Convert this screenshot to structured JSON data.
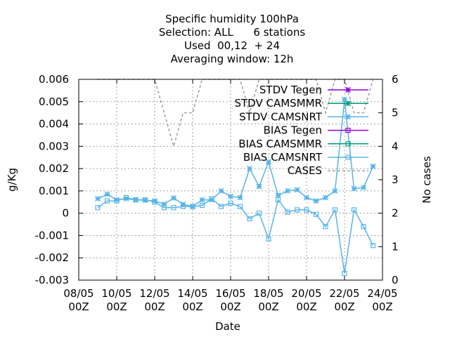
{
  "chart_data": {
    "type": "line",
    "title_lines": [
      "Specific humidity 100hPa",
      "Selection: ALL      6 stations",
      "Used  00,12  + 24",
      "Averaging window: 12h"
    ],
    "xlabel": "Date",
    "ylabel": "g/Kg",
    "y2label": "No cases",
    "xlim": [
      0,
      16
    ],
    "ylim": [
      -0.003,
      0.006
    ],
    "y2lim": [
      0,
      6
    ],
    "x_ticks": [
      {
        "x": 0,
        "line1": "08/05",
        "line2": "00Z"
      },
      {
        "x": 2,
        "line1": "10/05",
        "line2": "00Z"
      },
      {
        "x": 4,
        "line1": "12/05",
        "line2": "00Z"
      },
      {
        "x": 6,
        "line1": "14/05",
        "line2": "00Z"
      },
      {
        "x": 8,
        "line1": "16/05",
        "line2": "00Z"
      },
      {
        "x": 10,
        "line1": "18/05",
        "line2": "00Z"
      },
      {
        "x": 12,
        "line1": "20/05",
        "line2": "00Z"
      },
      {
        "x": 14,
        "line1": "22/05",
        "line2": "00Z"
      },
      {
        "x": 16,
        "line1": "24/05",
        "line2": "00Z"
      }
    ],
    "y_ticks": [
      {
        "v": 0.006,
        "label": "0.006"
      },
      {
        "v": 0.005,
        "label": "0.005"
      },
      {
        "v": 0.004,
        "label": "0.004"
      },
      {
        "v": 0.003,
        "label": "0.003"
      },
      {
        "v": 0.002,
        "label": "0.002"
      },
      {
        "v": 0.001,
        "label": "0.001"
      },
      {
        "v": 0,
        "label": "0"
      },
      {
        "v": -0.001,
        "label": "-0.001"
      },
      {
        "v": -0.002,
        "label": "-0.002"
      },
      {
        "v": -0.003,
        "label": "-0.003"
      }
    ],
    "y2_ticks": [
      {
        "v": 6,
        "label": "6"
      },
      {
        "v": 5,
        "label": "5"
      },
      {
        "v": 4,
        "label": "4"
      },
      {
        "v": 3,
        "label": "3"
      },
      {
        "v": 2,
        "label": "2"
      },
      {
        "v": 1,
        "label": "1"
      },
      {
        "v": 0,
        "label": "0"
      }
    ],
    "grid": true,
    "legend_position": "top-right",
    "series": [
      {
        "name": "STDV Tegen",
        "color": "#9400d3",
        "marker": "star",
        "axis": "y1",
        "x": [],
        "y": []
      },
      {
        "name": "STDV CAMSMMR",
        "color": "#009e73",
        "marker": "star",
        "axis": "y1",
        "x": [],
        "y": []
      },
      {
        "name": "STDV CAMSNRT",
        "color": "#56b4e9",
        "marker": "star",
        "axis": "y1",
        "x": [
          1,
          1.5,
          2,
          2.5,
          3,
          3.5,
          4,
          4.5,
          5,
          5.5,
          6,
          6.5,
          7,
          7.5,
          8,
          8.5,
          9,
          9.5,
          10,
          10.5,
          11,
          11.5,
          12,
          12.5,
          13,
          13.5,
          14,
          14.5,
          15,
          15.5
        ],
        "y": [
          0.00065,
          0.00085,
          0.0006,
          0.00065,
          0.0006,
          0.00058,
          0.00055,
          0.0004,
          0.00068,
          0.0004,
          0.0003,
          0.0006,
          0.0006,
          0.001,
          0.00075,
          0.0007,
          0.002,
          0.0012,
          0.0023,
          0.0008,
          0.001,
          0.00105,
          0.0007,
          0.00055,
          0.0007,
          0.001,
          0.0051,
          0.0011,
          0.00115,
          0.0021
        ]
      },
      {
        "name": "BIAS Tegen",
        "color": "#9400d3",
        "marker": "square",
        "axis": "y1",
        "x": [],
        "y": []
      },
      {
        "name": "BIAS CAMSMMR",
        "color": "#009e73",
        "marker": "square",
        "axis": "y1",
        "x": [],
        "y": []
      },
      {
        "name": "BIAS CAMSNRT",
        "color": "#56b4e9",
        "marker": "square",
        "axis": "y1",
        "x": [
          1,
          1.5,
          2,
          2.5,
          3,
          3.5,
          4,
          4.5,
          5,
          5.5,
          6,
          6.5,
          7,
          7.5,
          8,
          8.5,
          9,
          9.5,
          10,
          10.5,
          11,
          11.5,
          12,
          12.5,
          13,
          13.5,
          14,
          14.5,
          15,
          15.5
        ],
        "y": [
          0.00025,
          0.00055,
          0.00055,
          0.0007,
          0.0006,
          0.0006,
          0.0005,
          0.00025,
          0.00025,
          0.0003,
          0.0003,
          0.00035,
          0.00065,
          0.0003,
          0.00045,
          0.0003,
          -0.00025,
          0,
          -0.00115,
          0.0006,
          5e-05,
          0.00015,
          0.00015,
          -5e-05,
          -0.0006,
          0.00015,
          -0.0027,
          0.00015,
          -0.0006,
          -0.00145
        ]
      },
      {
        "name": "CASES",
        "color": "#a0a0a0",
        "marker": "none",
        "axis": "y2",
        "dash": true,
        "x": [
          1,
          1.5,
          2,
          2.5,
          3,
          3.5,
          4,
          4.5,
          5,
          5.5,
          6,
          6.5,
          7,
          7.5,
          8,
          8.5,
          9,
          9.5,
          10,
          10.5,
          11,
          11.5,
          12,
          12.5,
          13,
          13.5,
          14,
          14.5,
          15,
          15.5
        ],
        "y": [
          6,
          6,
          6,
          6,
          6,
          6,
          6,
          5,
          4,
          5,
          5,
          6,
          6,
          6,
          6,
          6,
          5,
          6,
          6,
          6,
          6,
          6,
          6,
          6,
          5,
          6,
          6,
          5,
          5,
          6
        ]
      }
    ]
  }
}
